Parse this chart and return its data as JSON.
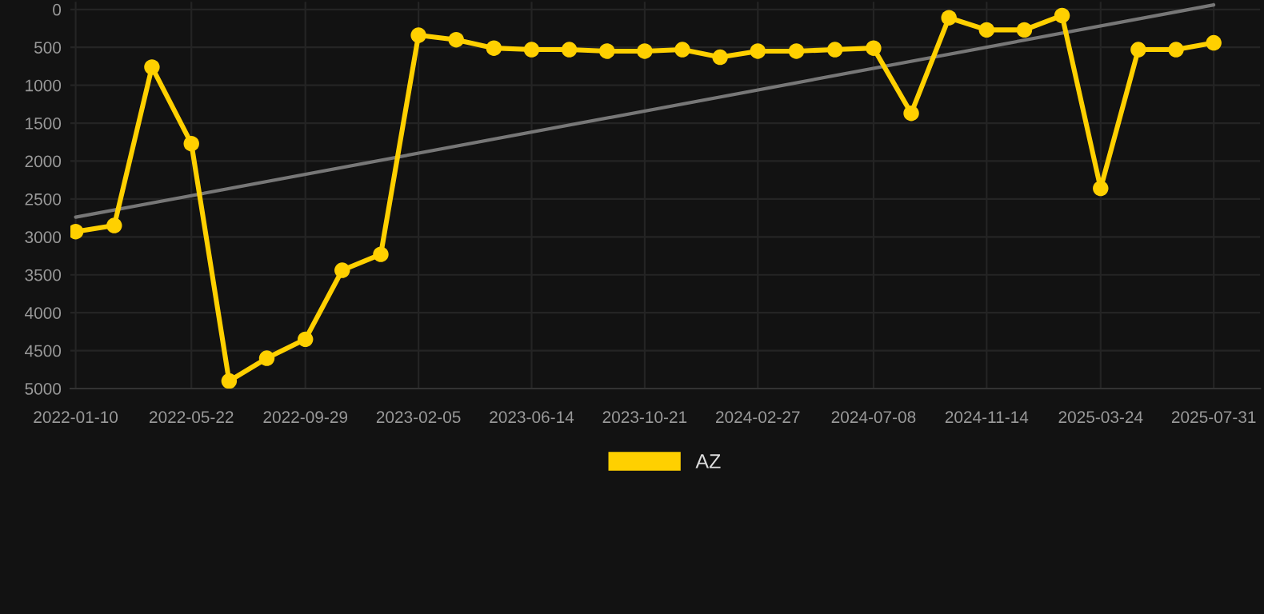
{
  "chart_data": {
    "type": "line",
    "x": [
      "2022-01-10",
      "2022-02-23",
      "2022-04-07",
      "2022-05-22",
      "2022-07-04",
      "2022-08-16",
      "2022-09-29",
      "2022-11-10",
      "2022-12-24",
      "2023-02-05",
      "2023-03-20",
      "2023-05-02",
      "2023-06-14",
      "2023-07-27",
      "2023-09-08",
      "2023-10-21",
      "2023-12-03",
      "2024-01-15",
      "2024-02-27",
      "2024-04-11",
      "2024-05-25",
      "2024-07-08",
      "2024-08-20",
      "2024-10-02",
      "2024-11-14",
      "2024-12-27",
      "2025-02-08",
      "2025-03-24",
      "2025-05-06",
      "2025-06-18",
      "2025-07-31"
    ],
    "series": [
      {
        "name": "AZ",
        "color": "#ffd000",
        "marker": "circle",
        "values": [
          2930,
          2850,
          760,
          1770,
          4900,
          4600,
          4350,
          3440,
          3230,
          340,
          400,
          510,
          530,
          530,
          550,
          550,
          530,
          630,
          550,
          550,
          530,
          510,
          1370,
          110,
          270,
          270,
          80,
          2360,
          530,
          530,
          440
        ]
      },
      {
        "type": "line",
        "color": "#777777",
        "marker": "none",
        "x": [
          "2022-01-10",
          "2025-07-31"
        ],
        "values": [
          2740,
          -60
        ]
      }
    ],
    "ylim": [
      5000,
      -100
    ],
    "yticks": [
      0,
      500,
      1000,
      1500,
      2000,
      2500,
      3000,
      3500,
      4000,
      4500,
      5000
    ],
    "xlim": [
      "2022-01-04",
      "2025-09-22"
    ],
    "xticks": [
      "2022-01-10",
      "2022-05-22",
      "2022-09-29",
      "2023-02-05",
      "2023-06-14",
      "2023-10-21",
      "2024-02-27",
      "2024-07-08",
      "2024-11-14",
      "2025-03-24",
      "2025-07-31"
    ],
    "grid": true,
    "legend": "bottom",
    "line_style": "solid"
  }
}
